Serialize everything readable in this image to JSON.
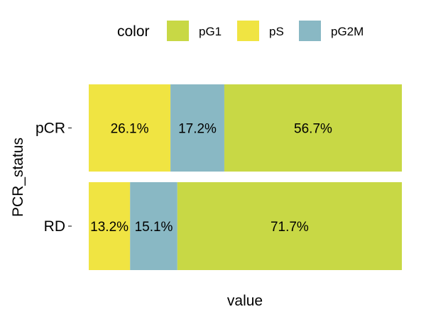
{
  "chart_data": {
    "type": "bar",
    "orientation": "horizontal",
    "stacked": true,
    "normalized": true,
    "categories": [
      "pCR",
      "RD"
    ],
    "series": [
      {
        "name": "pS",
        "values": [
          26.1,
          13.2
        ],
        "labels": [
          "26.1%",
          "13.2%"
        ],
        "color": "#F0E442"
      },
      {
        "name": "pG2M",
        "values": [
          17.2,
          15.1
        ],
        "labels": [
          "17.2%",
          "15.1%"
        ],
        "color": "#89B8C4"
      },
      {
        "name": "pG1",
        "values": [
          56.7,
          71.7
        ],
        "labels": [
          "56.7%",
          "71.7%"
        ],
        "color": "#C8D845"
      }
    ],
    "xlabel": "value",
    "ylabel": "PCR_status",
    "xlim": [
      0,
      100
    ],
    "grid": false,
    "legend": {
      "title": "color",
      "position": "top",
      "entries": [
        {
          "label": "pG1",
          "color": "#C8D845"
        },
        {
          "label": "pS",
          "color": "#F0E442"
        },
        {
          "label": "pG2M",
          "color": "#89B8C4"
        }
      ]
    }
  }
}
